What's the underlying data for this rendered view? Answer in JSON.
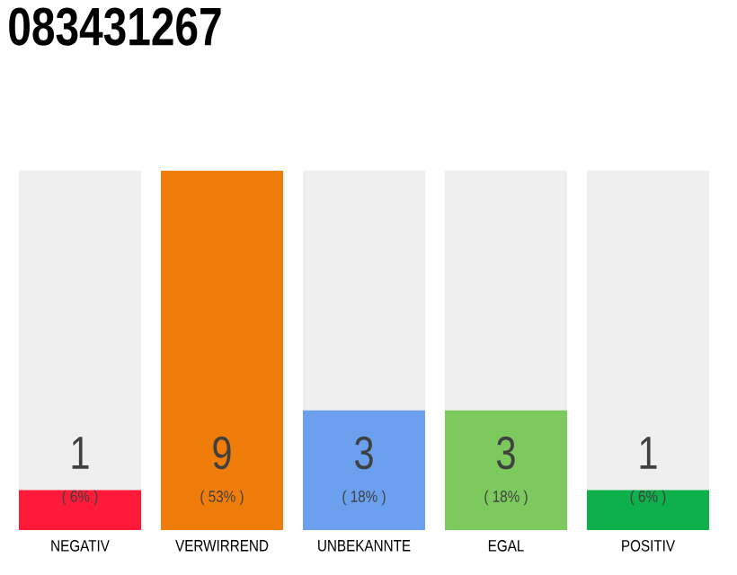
{
  "chart_data": {
    "type": "bar",
    "title": "083431267",
    "categories": [
      "NEGATIV",
      "VERWIRREND",
      "UNBEKANNTE",
      "EGAL",
      "POSITIV"
    ],
    "values": [
      1,
      9,
      3,
      3,
      1
    ],
    "colors": [
      "#ff1a3a",
      "#f07d0a",
      "#6aa0ee",
      "#7cc95d",
      "#0db04b"
    ],
    "value_labels": [
      "1",
      "9",
      "3",
      "3",
      "1"
    ],
    "annotations": [
      "( 6% )",
      "( 53% )",
      "( 18% )",
      "( 18% )",
      "( 6% )"
    ],
    "tick_labels": "x"
  }
}
